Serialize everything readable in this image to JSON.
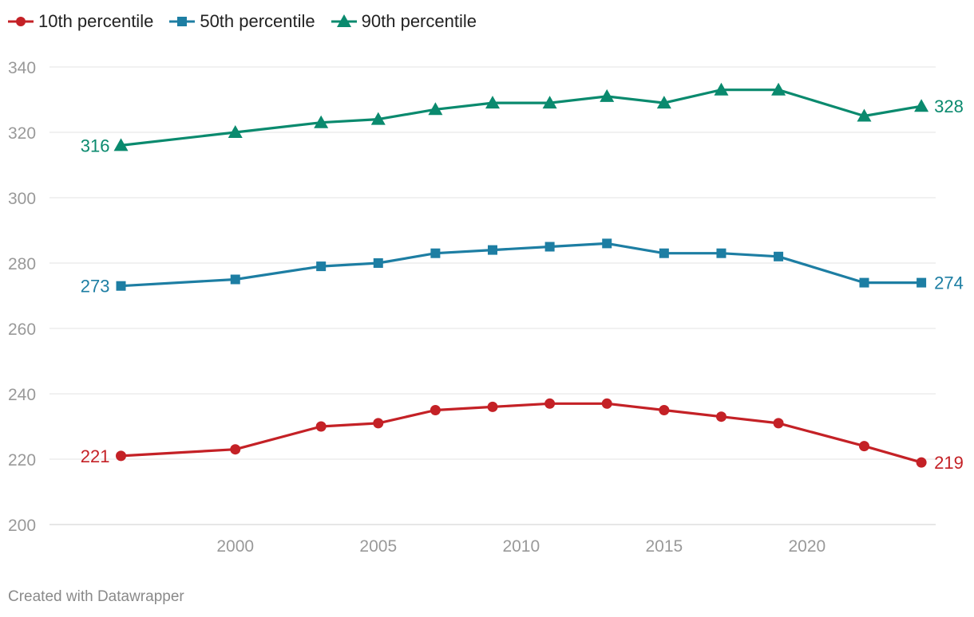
{
  "chart_data": {
    "type": "line",
    "x": [
      1996,
      2000,
      2003,
      2005,
      2007,
      2009,
      2011,
      2013,
      2015,
      2017,
      2019,
      2022,
      2024
    ],
    "series": [
      {
        "name": "10th percentile",
        "color": "#c42126",
        "marker": "circle",
        "values": [
          221,
          223,
          230,
          231,
          235,
          236,
          237,
          237,
          235,
          233,
          231,
          224,
          219
        ],
        "start_label": "221",
        "end_label": "219"
      },
      {
        "name": "50th percentile",
        "color": "#1d7ea3",
        "marker": "square",
        "values": [
          273,
          275,
          279,
          280,
          283,
          284,
          285,
          286,
          283,
          283,
          282,
          274,
          274
        ],
        "start_label": "273",
        "end_label": "274"
      },
      {
        "name": "90th percentile",
        "color": "#0a8a6e",
        "marker": "triangle",
        "values": [
          316,
          320,
          323,
          324,
          327,
          329,
          329,
          331,
          329,
          333,
          333,
          325,
          328
        ],
        "start_label": "316",
        "end_label": "328"
      }
    ],
    "ylim": [
      200,
      340
    ],
    "yticks": [
      200,
      220,
      240,
      260,
      280,
      300,
      320,
      340
    ],
    "xticks": [
      2000,
      2005,
      2010,
      2015,
      2020
    ],
    "xlim": [
      1993.5,
      2024.5
    ],
    "grid": true,
    "legend_position": "top-left"
  },
  "footer": "Created with Datawrapper"
}
